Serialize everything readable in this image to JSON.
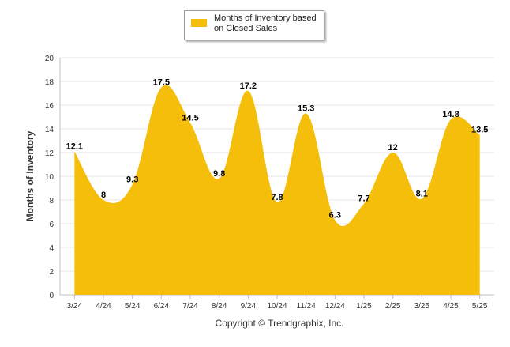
{
  "chart_data": {
    "type": "area",
    "title": "",
    "xlabel": "",
    "ylabel": "Months of Inventory",
    "categories": [
      "3/24",
      "4/24",
      "5/24",
      "6/24",
      "7/24",
      "8/24",
      "9/24",
      "10/24",
      "11/24",
      "12/24",
      "1/25",
      "2/25",
      "3/25",
      "4/25",
      "5/25"
    ],
    "series": [
      {
        "name": "Months of Inventory based on Closed Sales",
        "values": [
          12.1,
          8,
          9.3,
          17.5,
          14.5,
          9.8,
          17.2,
          7.8,
          15.3,
          6.3,
          7.7,
          12,
          8.1,
          14.8,
          13.5
        ],
        "labels": [
          "12.1",
          "8",
          "9.3",
          "17.5",
          "14.5",
          "9.8",
          "17.2",
          "7.8",
          "15.3",
          "6.3",
          "7.7",
          "12",
          "8.1",
          "14.8",
          "13.5"
        ],
        "color": "#F5BE0A"
      }
    ],
    "ylim": [
      0,
      20
    ],
    "yticks": [
      "0",
      "2",
      "4",
      "6",
      "8",
      "10",
      "12",
      "14",
      "16",
      "18",
      "20"
    ],
    "grid": true,
    "legend_position": "top-center"
  },
  "legend": {
    "label": "Months of Inventory based on Closed Sales"
  },
  "footer": {
    "copyright": "Copyright © Trendgraphix, Inc."
  }
}
